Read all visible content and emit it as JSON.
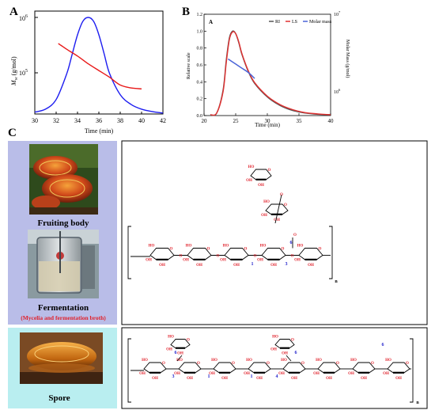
{
  "panels": {
    "a": {
      "letter": "A",
      "ylabel_main": "M",
      "ylabel_sub": "w",
      "ylabel_unit": "(g/mol)",
      "ytick_top": "10",
      "ytick_top_exp": "6",
      "ytick_mid": "10",
      "ytick_mid_exp": "5",
      "xlabel": "Time (min)",
      "xticks": [
        "30",
        "32",
        "34",
        "36",
        "38",
        "40",
        "42"
      ]
    },
    "b": {
      "letter": "B",
      "inner_letter": "A",
      "ylabel_left": "Relative scale",
      "ylabel_right": "Molar Mass (g/mol)",
      "xlabel": "Time (min)",
      "yticks": [
        "0.0",
        "0.2",
        "0.4",
        "0.6",
        "0.8",
        "1.0",
        "1.2"
      ],
      "xticks": [
        "20",
        "25",
        "30",
        "35",
        "40"
      ],
      "rtick_top": "10",
      "rtick_top_exp": "7",
      "rtick_bottom": "10",
      "rtick_bottom_exp": "6",
      "legend": [
        "RI",
        "LS",
        "Molar mass"
      ]
    },
    "c": {
      "letter": "C",
      "labels": {
        "fruiting": "Fruiting body",
        "fermentation": "Fermentation",
        "fermentation_sub": "(Mycelia and fermentation broth)",
        "spore": "Spore"
      },
      "struct_text": {
        "oh": "OH",
        "ho": "HO",
        "o": "O",
        "n": "n",
        "num1": "1",
        "num3": "3",
        "num4": "4",
        "num6": "6"
      }
    }
  },
  "chart_data": [
    {
      "type": "line",
      "xlabel": "Time (min)",
      "ylabel": "Mw (g/mol)",
      "xlim": [
        30,
        42
      ],
      "series": [
        {
          "color": "#1d1df0",
          "x": [
            30,
            31,
            32,
            33,
            33.5,
            34,
            34.5,
            35,
            35.5,
            36,
            36.5,
            37,
            38,
            39,
            40,
            41,
            42
          ],
          "y": [
            0.02,
            0.05,
            0.15,
            0.42,
            0.62,
            0.82,
            0.96,
            1.0,
            0.96,
            0.82,
            0.62,
            0.42,
            0.2,
            0.1,
            0.05,
            0.025,
            0.01
          ]
        },
        {
          "color": "#e81919",
          "x": [
            32.2,
            33,
            34,
            35,
            36,
            37,
            38,
            39,
            40
          ],
          "y": [
            0.73,
            0.67,
            0.6,
            0.52,
            0.45,
            0.38,
            0.3,
            0.27,
            0.26
          ]
        }
      ]
    },
    {
      "type": "line",
      "title": "A",
      "xlabel": "Time (min)",
      "ylabel": "Relative scale",
      "xlim": [
        20,
        40
      ],
      "ylim": [
        0,
        1.2
      ],
      "series": [
        {
          "name": "RI",
          "color": "#555555",
          "x": [
            21,
            22,
            23,
            23.5,
            24,
            24.5,
            25,
            25.5,
            26,
            27,
            28,
            30,
            32,
            34,
            36,
            38,
            40
          ],
          "y": [
            0.01,
            0.03,
            0.3,
            0.65,
            0.92,
            1.0,
            0.97,
            0.86,
            0.72,
            0.52,
            0.38,
            0.22,
            0.12,
            0.06,
            0.03,
            0.015,
            0.01
          ]
        },
        {
          "name": "LS",
          "color": "#e03030",
          "x": [
            21,
            22,
            23,
            23.5,
            24,
            24.5,
            25,
            25.5,
            26,
            27,
            28,
            30,
            32,
            34,
            36,
            38,
            40
          ],
          "y": [
            0.01,
            0.03,
            0.28,
            0.62,
            0.9,
            0.99,
            0.97,
            0.87,
            0.73,
            0.53,
            0.39,
            0.23,
            0.13,
            0.07,
            0.035,
            0.02,
            0.01
          ]
        },
        {
          "name": "Molar mass",
          "color": "#4a64d8",
          "x": [
            23.8,
            25,
            26,
            27,
            28
          ],
          "y": [
            0.67,
            0.61,
            0.56,
            0.51,
            0.44
          ]
        }
      ]
    }
  ]
}
